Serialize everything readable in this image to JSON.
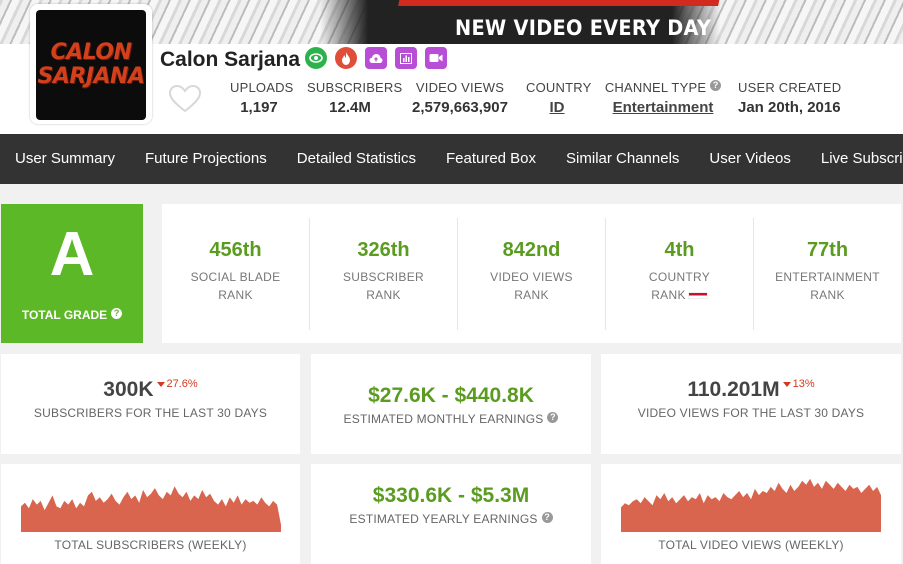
{
  "banner": {
    "tagline": "NEW VIDEO EVERY DAY"
  },
  "channel": {
    "name": "Calon Sarjana",
    "avatar_text_1": "CALON",
    "avatar_text_2": "SARJANA"
  },
  "badges": [
    {
      "icon": "eye-icon",
      "color": "#2bb24c"
    },
    {
      "icon": "flame-icon",
      "color": "#e04e39"
    },
    {
      "icon": "cloud-upload-icon",
      "color": "#b94ed6"
    },
    {
      "icon": "bar-chart-icon",
      "color": "#b94ed6"
    },
    {
      "icon": "video-camera-icon",
      "color": "#b94ed6"
    }
  ],
  "stats": {
    "uploads": {
      "label": "UPLOADS",
      "value": "1,197"
    },
    "subscribers": {
      "label": "SUBSCRIBERS",
      "value": "12.4M"
    },
    "video_views": {
      "label": "VIDEO VIEWS",
      "value": "2,579,663,907"
    },
    "country": {
      "label": "COUNTRY",
      "value": "ID"
    },
    "channel_type": {
      "label": "CHANNEL TYPE",
      "value": "Entertainment"
    },
    "user_created": {
      "label": "USER CREATED",
      "value": "Jan 20th, 2016"
    }
  },
  "nav": [
    "User Summary",
    "Future Projections",
    "Detailed Statistics",
    "Featured Box",
    "Similar Channels",
    "User Videos",
    "Live Subscriber"
  ],
  "grade": {
    "letter": "A",
    "label": "TOTAL GRADE"
  },
  "ranks": [
    {
      "value": "456th",
      "line1": "SOCIAL BLADE",
      "line2": "RANK"
    },
    {
      "value": "326th",
      "line1": "SUBSCRIBER",
      "line2": "RANK"
    },
    {
      "value": "842nd",
      "line1": "VIDEO VIEWS",
      "line2": "RANK"
    },
    {
      "value": "4th",
      "line1": "COUNTRY",
      "line2": "RANK"
    },
    {
      "value": "77th",
      "line1": "ENTERTAINMENT",
      "line2": "RANK"
    }
  ],
  "cards": {
    "subs30": {
      "value": "300K",
      "delta": "27.6%",
      "label": "SUBSCRIBERS FOR THE LAST 30 DAYS"
    },
    "monthly": {
      "value": "$27.6K - $440.8K",
      "label": "ESTIMATED MONTHLY EARNINGS"
    },
    "views30": {
      "value": "110.201M",
      "delta": "13%",
      "label": "VIDEO VIEWS FOR THE LAST 30 DAYS"
    },
    "yearly": {
      "value": "$330.6K - $5.3M",
      "label": "ESTIMATED YEARLY EARNINGS"
    },
    "subs_weekly": {
      "label": "TOTAL SUBSCRIBERS (WEEKLY)"
    },
    "views_weekly": {
      "label": "TOTAL VIDEO VIEWS (WEEKLY)"
    }
  },
  "colors": {
    "accent_green": "#5cb826",
    "nav_bg": "#333333",
    "spark_fill": "#d9654f"
  },
  "sparklines": {
    "subscribers_weekly": [
      14,
      16,
      13,
      18,
      15,
      17,
      12,
      16,
      20,
      14,
      13,
      17,
      15,
      18,
      13,
      16,
      14,
      20,
      22,
      17,
      19,
      16,
      18,
      21,
      17,
      15,
      19,
      22,
      18,
      20,
      16,
      23,
      19,
      21,
      24,
      20,
      18,
      22,
      20,
      25,
      21,
      19,
      22,
      17,
      20,
      18,
      23,
      19,
      21,
      17,
      15,
      18,
      14,
      19,
      16,
      20,
      15,
      18,
      16,
      17,
      15,
      19,
      16,
      14,
      17,
      15,
      4
    ],
    "views_weekly": [
      12,
      14,
      13,
      15,
      16,
      14,
      17,
      15,
      13,
      18,
      16,
      19,
      15,
      17,
      14,
      16,
      18,
      15,
      17,
      16,
      19,
      14,
      18,
      16,
      17,
      15,
      19,
      17,
      16,
      18,
      20,
      17,
      19,
      16,
      21,
      18,
      20,
      19,
      22,
      20,
      24,
      21,
      19,
      23,
      20,
      22,
      25,
      23,
      26,
      22,
      24,
      21,
      25,
      23,
      21,
      24,
      22,
      20,
      23,
      21,
      22,
      19,
      21,
      23,
      20,
      22,
      18
    ]
  }
}
